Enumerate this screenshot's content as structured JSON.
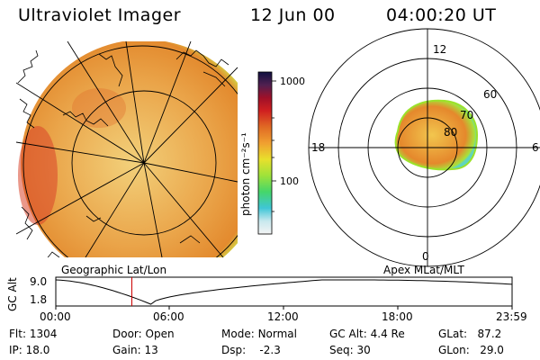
{
  "header": {
    "title": "Ultraviolet Imager",
    "date": "12 Jun 00",
    "time": "04:00:20 UT"
  },
  "left_panel": {
    "caption": "Geographic Lat/Lon"
  },
  "right_panel": {
    "caption": "Apex MLat/MLT",
    "mlt_labels": [
      "12",
      "18",
      "6",
      "0"
    ],
    "lat_labels": [
      "60",
      "70",
      "80"
    ]
  },
  "colorbar": {
    "unit": "photon cm⁻²s⁻¹",
    "ticks": [
      "1000",
      "100"
    ]
  },
  "altitude_plot": {
    "ylabel": "GC Alt",
    "yticks": [
      "9.0",
      "1.8"
    ],
    "xticks": [
      "00:00",
      "06:00",
      "12:00",
      "18:00",
      "23:59"
    ],
    "marker_time_hours": 4.0
  },
  "status": {
    "row1": [
      {
        "k": "Flt:",
        "v": "1304"
      },
      {
        "k": "Door:",
        "v": "Open"
      },
      {
        "k": "Mode:",
        "v": "Normal"
      },
      {
        "k": "GC Alt:",
        "v": "4.4 Re"
      },
      {
        "k": "GLat:",
        "v": "87.2"
      }
    ],
    "row2": [
      {
        "k": "IP:",
        "v": "18.0"
      },
      {
        "k": "Gain:",
        "v": "13"
      },
      {
        "k": "Dsp:",
        "v": "-2.3"
      },
      {
        "k": "Seq:",
        "v": "30"
      },
      {
        "k": "GLon:",
        "v": "29.0"
      }
    ]
  },
  "colors": {
    "marker": "#cc0000",
    "aurora_core": "#e58a2a",
    "aurora_edge": "#9be22a"
  }
}
